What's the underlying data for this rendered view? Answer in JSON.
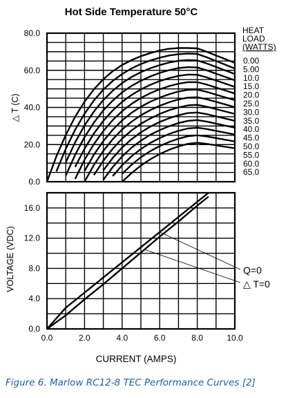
{
  "caption": "Figure 6. Marlow RC12-8 TEC Performance Curves [2]",
  "watermark": "",
  "colors": {
    "ink": "#000000",
    "caption": "#1f5fa6",
    "background": "#ffffff"
  },
  "chart_data": [
    {
      "type": "line",
      "title": "Hot Side Temperature 50°C",
      "ylabel": "△ T (C)",
      "xlabel": "",
      "xlim": [
        0,
        10
      ],
      "ylim": [
        0,
        80
      ],
      "grid": true,
      "yticks": [
        "0.0",
        "20.0",
        "40.0",
        "60.0",
        "80.0"
      ],
      "legend_title": "HEAT LOAD (WATTS)",
      "legend_placement": "right",
      "x": [
        0.0,
        0.5,
        1.0,
        1.5,
        2.0,
        2.5,
        3.0,
        3.5,
        4.0,
        4.5,
        5.0,
        5.5,
        6.0,
        6.5,
        7.0,
        7.5,
        8.0,
        8.5,
        9.0,
        9.5,
        10.0
      ],
      "series": [
        {
          "name": "0.00",
          "values": [
            0.0,
            13.6,
            25.2,
            35.0,
            43.1,
            49.8,
            55.2,
            59.5,
            62.9,
            65.5,
            67.6,
            69.3,
            70.7,
            71.6,
            72.0,
            72.0,
            71.8,
            70.0,
            68.0,
            66.0,
            64.0
          ]
        },
        {
          "name": "5.00",
          "values": [
            null,
            5.5,
            17.7,
            28.0,
            36.6,
            43.8,
            49.6,
            54.3,
            58.0,
            61.0,
            63.4,
            65.3,
            66.8,
            68.0,
            68.7,
            69.0,
            68.8,
            67.0,
            65.0,
            63.0,
            61.0
          ]
        },
        {
          "name": "10.0",
          "values": [
            null,
            null,
            10.4,
            21.2,
            30.3,
            37.8,
            44.0,
            49.0,
            53.1,
            56.4,
            59.0,
            61.1,
            62.8,
            64.2,
            65.1,
            65.5,
            65.3,
            63.7,
            61.8,
            59.9,
            58.0
          ]
        },
        {
          "name": "15.0",
          "values": [
            null,
            null,
            3.3,
            14.5,
            24.0,
            31.9,
            38.4,
            43.7,
            48.1,
            51.6,
            54.4,
            56.7,
            58.6,
            60.1,
            61.2,
            61.7,
            61.5,
            60.0,
            58.2,
            56.4,
            54.6
          ]
        },
        {
          "name": "20.0",
          "values": [
            null,
            null,
            null,
            8.0,
            17.8,
            26.0,
            32.8,
            38.4,
            43.0,
            46.7,
            49.7,
            52.2,
            54.2,
            55.8,
            57.0,
            57.7,
            57.6,
            56.2,
            54.5,
            52.8,
            51.1
          ]
        },
        {
          "name": "25.0",
          "values": [
            null,
            null,
            null,
            1.5,
            11.8,
            20.3,
            27.3,
            33.2,
            38.0,
            41.9,
            45.1,
            47.7,
            49.8,
            51.5,
            52.8,
            53.6,
            53.6,
            52.3,
            50.7,
            49.1,
            47.5
          ]
        },
        {
          "name": "30.0",
          "values": [
            null,
            null,
            null,
            null,
            5.8,
            14.6,
            21.9,
            28.0,
            33.0,
            37.1,
            40.4,
            43.1,
            45.3,
            47.1,
            48.6,
            49.5,
            49.6,
            48.4,
            46.9,
            45.4,
            43.9
          ]
        },
        {
          "name": "35.0",
          "values": [
            null,
            null,
            null,
            null,
            0.0,
            9.1,
            16.6,
            22.9,
            28.1,
            32.3,
            35.8,
            38.6,
            40.9,
            42.8,
            44.3,
            45.3,
            45.5,
            44.4,
            43.0,
            41.6,
            40.2
          ]
        },
        {
          "name": "40.0",
          "values": [
            null,
            null,
            null,
            null,
            null,
            3.6,
            11.3,
            17.8,
            23.2,
            27.6,
            31.2,
            34.1,
            36.5,
            38.5,
            40.0,
            41.1,
            41.4,
            40.4,
            39.1,
            37.8,
            36.5
          ]
        },
        {
          "name": "45.0",
          "values": [
            null,
            null,
            null,
            null,
            null,
            null,
            6.1,
            12.8,
            18.4,
            22.9,
            26.6,
            29.7,
            32.2,
            34.2,
            35.8,
            37.0,
            37.3,
            36.4,
            35.2,
            34.0,
            32.8
          ]
        },
        {
          "name": "50.0",
          "values": [
            null,
            null,
            null,
            null,
            null,
            null,
            1.0,
            7.9,
            13.6,
            18.3,
            22.1,
            25.3,
            27.8,
            29.9,
            31.6,
            32.8,
            33.2,
            32.4,
            31.3,
            30.2,
            29.1
          ]
        },
        {
          "name": "55.0",
          "values": [
            null,
            null,
            null,
            null,
            null,
            null,
            null,
            3.0,
            8.9,
            13.7,
            17.6,
            20.9,
            23.5,
            25.7,
            27.4,
            28.7,
            29.1,
            28.4,
            27.4,
            26.4,
            25.4
          ]
        },
        {
          "name": "60.0",
          "values": [
            null,
            null,
            null,
            null,
            null,
            null,
            null,
            null,
            4.2,
            9.1,
            13.2,
            16.5,
            19.2,
            21.4,
            23.2,
            24.5,
            25.0,
            24.4,
            23.5,
            22.6,
            21.7
          ]
        },
        {
          "name": "65.0",
          "values": [
            null,
            null,
            null,
            null,
            null,
            null,
            null,
            null,
            0.0,
            4.6,
            8.7,
            12.1,
            14.9,
            17.2,
            19.0,
            20.4,
            21.0,
            20.4,
            19.6,
            18.8,
            18.0
          ]
        }
      ]
    },
    {
      "type": "line",
      "title": "",
      "xlabel": "CURRENT (AMPS)",
      "ylabel": "VOLTAGE (VDC)",
      "xlim": [
        0,
        10
      ],
      "ylim": [
        0,
        18
      ],
      "grid": true,
      "xticks": [
        "0.0",
        "2.0",
        "4.0",
        "6.0",
        "8.0",
        "10.0"
      ],
      "yticks": [
        "0.0",
        "4.0",
        "8.0",
        "12.0",
        "16.0"
      ],
      "series": [
        {
          "name": "Q=0",
          "x": [
            0.0,
            1.0,
            2.0,
            3.0,
            4.0,
            5.0,
            6.0,
            7.0,
            8.0,
            8.6
          ],
          "values": [
            0.0,
            2.8,
            4.8,
            6.8,
            8.8,
            10.8,
            12.8,
            14.8,
            16.8,
            18.0
          ]
        },
        {
          "name": "△ T=0",
          "x": [
            0.0,
            1.0,
            2.0,
            3.0,
            4.0,
            5.0,
            6.0,
            7.0,
            8.0,
            8.6
          ],
          "values": [
            0.0,
            1.8,
            3.9,
            5.9,
            8.0,
            10.1,
            12.2,
            14.2,
            16.3,
            17.5
          ]
        }
      ],
      "annotations": [
        "Q=0",
        "△ T=0"
      ]
    }
  ]
}
